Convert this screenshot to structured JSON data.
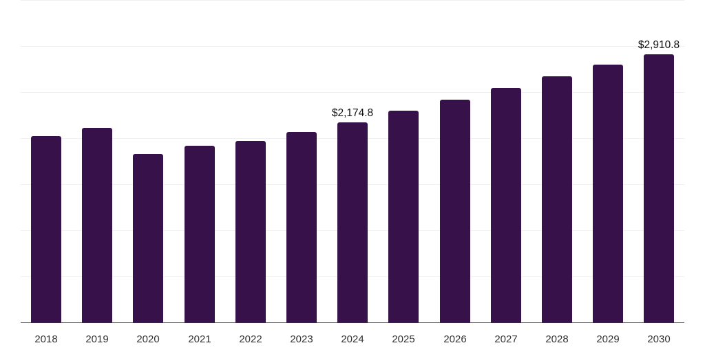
{
  "chart_data": {
    "type": "bar",
    "title": "",
    "xlabel": "",
    "ylabel": "",
    "categories": [
      "2018",
      "2019",
      "2020",
      "2021",
      "2022",
      "2023",
      "2024",
      "2025",
      "2026",
      "2027",
      "2028",
      "2029",
      "2030"
    ],
    "values": [
      2020,
      2109,
      1825,
      1915,
      1967,
      2064,
      2174.8,
      2296,
      2416,
      2543,
      2670,
      2797,
      2910.8
    ],
    "data_labels": [
      {
        "category": "2024",
        "text": "$2,174.8"
      },
      {
        "category": "2030",
        "text": "$2,910.8"
      }
    ],
    "ylim": [
      0,
      3500
    ],
    "grid": true,
    "gridline_values": [
      0,
      500,
      1000,
      1500,
      2000,
      2500,
      3000,
      3500
    ],
    "legend": null,
    "bar_color": "#37124a"
  },
  "labels": {
    "value_2024": "$2,174.8",
    "value_2030": "$2,910.8"
  }
}
